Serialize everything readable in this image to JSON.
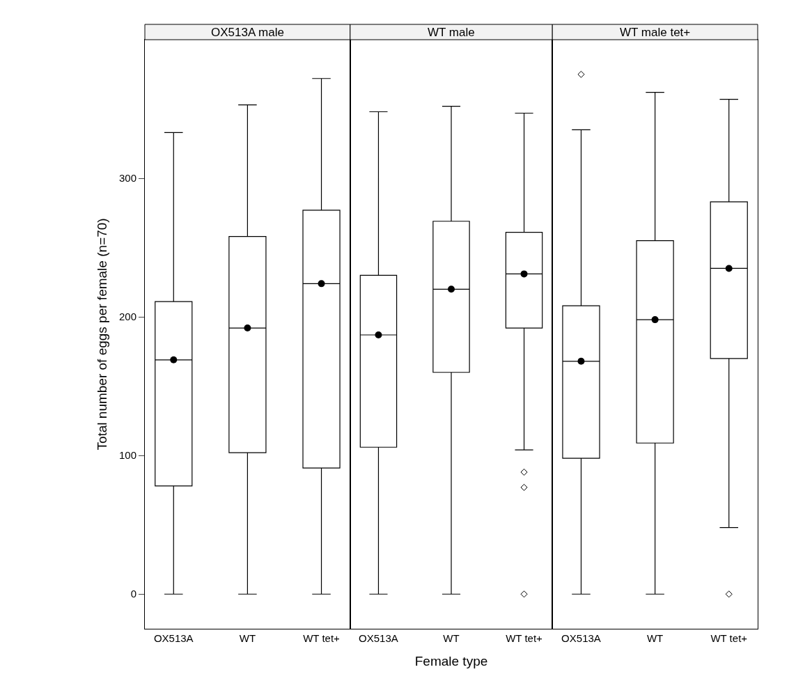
{
  "chart_data": [
    {
      "type": "box",
      "title": "OX513A male",
      "ylabel": "Total number of eggs per female (n=70)",
      "categories": [
        "OX513A",
        "WT",
        "WT tet+"
      ],
      "boxes": [
        {
          "low": 0,
          "q1": 78,
          "median": 169,
          "q3": 211,
          "high": 333
        },
        {
          "low": 0,
          "q1": 102,
          "median": 192,
          "q3": 258,
          "high": 353
        },
        {
          "low": 0,
          "q1": 91,
          "median": 224,
          "q3": 277,
          "high": 372
        }
      ],
      "series": [
        {
          "type": "scatter",
          "x": [
            "OX513A",
            "WT",
            "WT tet+"
          ],
          "values": [
            169,
            192,
            224
          ],
          "color": "#000000"
        }
      ],
      "ylim": [
        -25,
        400
      ],
      "yticks": [
        0,
        100,
        200,
        300
      ]
    },
    {
      "type": "box",
      "title": "WT male",
      "xlabel": "Female type",
      "categories": [
        "OX513A",
        "WT",
        "WT tet+"
      ],
      "boxes": [
        {
          "low": 0,
          "q1": 106,
          "median": 187,
          "q3": 230,
          "high": 348
        },
        {
          "low": 0,
          "q1": 160,
          "median": 220,
          "q3": 269,
          "high": 352
        },
        {
          "low": 104,
          "q1": 192,
          "median": 231,
          "q3": 261,
          "high": 347,
          "outliers": [
            88,
            77,
            0
          ]
        }
      ],
      "series": [
        {
          "type": "scatter",
          "x": [
            "OX513A",
            "WT",
            "WT tet+"
          ],
          "values": [
            187,
            220,
            231
          ],
          "color": "#000000"
        }
      ],
      "ylim": [
        -25,
        400
      ],
      "yticks": [
        0,
        100,
        200,
        300
      ],
      "tick_labels": "x"
    },
    {
      "type": "box",
      "title": "WT male tet+",
      "categories": [
        "OX513A",
        "WT",
        "WT tet+"
      ],
      "boxes": [
        {
          "low": 0,
          "q1": 98,
          "median": 168,
          "q3": 208,
          "high": 335,
          "outliers": [
            375
          ]
        },
        {
          "low": 0,
          "q1": 109,
          "median": 198,
          "q3": 255,
          "high": 362
        },
        {
          "low": 48,
          "q1": 170,
          "median": 235,
          "q3": 283,
          "high": 357,
          "outliers": [
            0
          ]
        }
      ],
      "series": [
        {
          "type": "scatter",
          "x": [
            "OX513A",
            "WT",
            "WT tet+"
          ],
          "values": [
            168,
            198,
            235
          ],
          "color": "#000000"
        }
      ],
      "ylim": [
        -25,
        400
      ],
      "yticks": [
        0,
        100,
        200,
        300
      ],
      "tick_labels": "x"
    }
  ]
}
